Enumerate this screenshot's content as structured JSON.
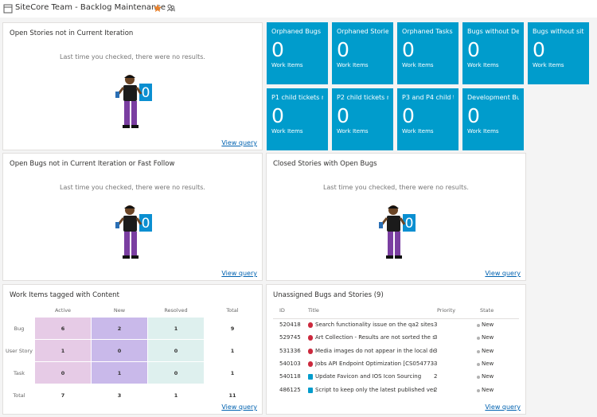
{
  "header": {
    "title": "SiteCore Team - Backlog Maintenance ..."
  },
  "tiles": [
    {
      "title": "Orphaned Bugs",
      "count": 0,
      "label": "Work Items"
    },
    {
      "title": "Orphaned Stories",
      "count": 0,
      "label": "Work Items"
    },
    {
      "title": "Orphaned Tasks",
      "count": 0,
      "label": "Work Items"
    },
    {
      "title": "Bugs without De...",
      "count": 0,
      "label": "Work Items"
    },
    {
      "title": "Bugs without sit...",
      "count": 0,
      "label": "Work Items"
    },
    {
      "title": "P1 child tickets n...",
      "count": 0,
      "label": "Work Items"
    },
    {
      "title": "P2 child tickets n...",
      "count": 0,
      "label": "Work Items"
    },
    {
      "title": "P3 and P4 child t...",
      "count": 0,
      "label": "Work Items"
    },
    {
      "title": "Development Bu...",
      "count": 0,
      "label": "Work Items"
    }
  ],
  "empty_widgets": [
    {
      "title": "Open Stories not in Current Iteration",
      "message": "Last time you checked, there were no results.",
      "badge": "0",
      "link": "View query"
    },
    {
      "title": "Open Bugs not in Current Iteration or Fast Follow",
      "message": "Last time you checked, there were no results.",
      "badge": "0",
      "link": "View query"
    },
    {
      "title": "Closed Stories with Open Bugs",
      "message": "Last time you checked, there were no results.",
      "badge": "0",
      "link": "View query"
    }
  ],
  "pivot": {
    "title": "Work Items tagged with Content",
    "columns": [
      "Active",
      "New",
      "Resolved",
      "Total"
    ],
    "rows": [
      {
        "label": "Bug",
        "values": [
          6,
          2,
          1,
          9
        ]
      },
      {
        "label": "User Story",
        "values": [
          1,
          0,
          0,
          1
        ]
      },
      {
        "label": "Task",
        "values": [
          0,
          1,
          0,
          1
        ]
      },
      {
        "label": "Total",
        "values": [
          7,
          3,
          1,
          11
        ]
      }
    ],
    "link": "View query"
  },
  "query_table": {
    "title": "Unassigned Bugs and Stories (9)",
    "columns": [
      "ID",
      "Title",
      "Priority",
      "State"
    ],
    "rows": [
      {
        "id": 520418,
        "type": "bug",
        "title": "Search functionality issue on the qa2 sites",
        "priority": 3,
        "state": "New"
      },
      {
        "id": 529745,
        "type": "bug",
        "title": "Art Collection - Results are not sorted the sam...",
        "priority": 3,
        "state": "New"
      },
      {
        "id": 531336,
        "type": "bug",
        "title": "Media images do not appear in the local devel...",
        "priority": 3,
        "state": "New"
      },
      {
        "id": 540103,
        "type": "bug",
        "title": "Jobs API Endpoint Optimization [CS0547734]",
        "priority": 3,
        "state": "New"
      },
      {
        "id": 540118,
        "type": "story",
        "title": "Update Favicon and IOS Icon Sourcing",
        "priority": 2,
        "state": "New"
      },
      {
        "id": 486125,
        "type": "story",
        "title": "Script to keep only the latest published version",
        "priority": 2,
        "state": "New"
      }
    ],
    "link": "View query"
  }
}
